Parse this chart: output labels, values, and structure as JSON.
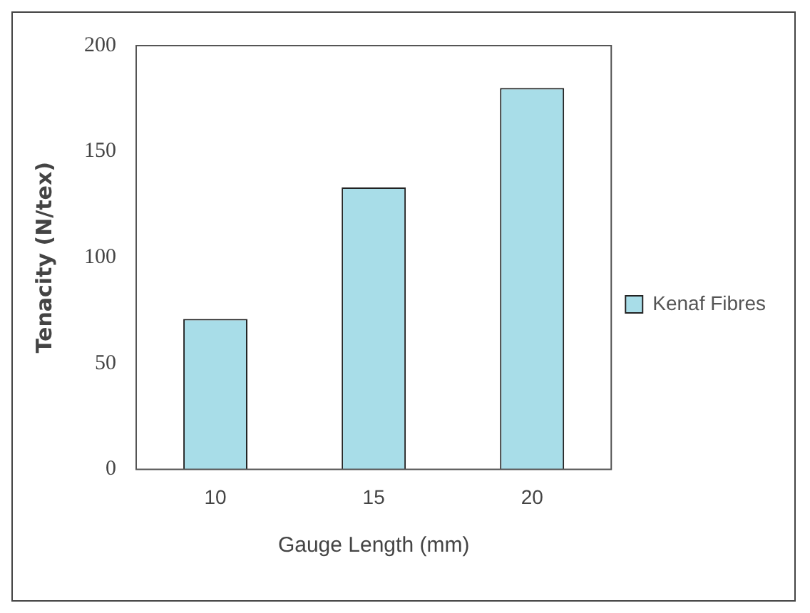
{
  "chart_data": {
    "type": "bar",
    "xlabel": "Gauge Length (mm)",
    "ylabel": "Tenacity (N/tex)",
    "categories": [
      "10",
      "15",
      "20"
    ],
    "series": [
      {
        "name": "Kenaf Fibres",
        "color": "#a8dde8",
        "values": [
          71,
          133,
          180
        ]
      }
    ],
    "ylim": [
      0,
      200
    ],
    "yticks": [
      0,
      50,
      100,
      150,
      200
    ],
    "grid": false,
    "legend": "right"
  }
}
